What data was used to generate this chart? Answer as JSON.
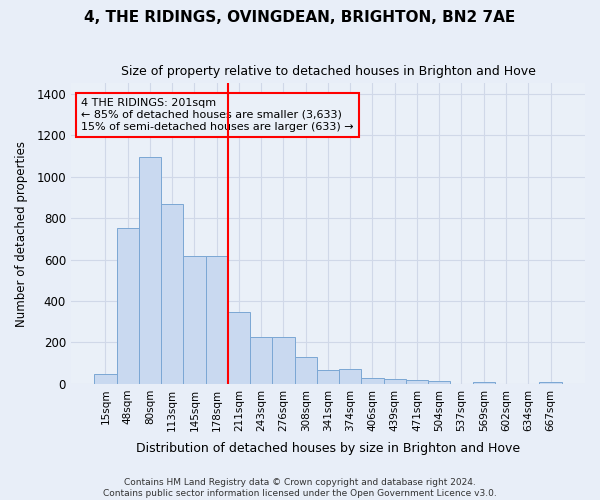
{
  "title": "4, THE RIDINGS, OVINGDEAN, BRIGHTON, BN2 7AE",
  "subtitle": "Size of property relative to detached houses in Brighton and Hove",
  "xlabel": "Distribution of detached houses by size in Brighton and Hove",
  "ylabel": "Number of detached properties",
  "footer": "Contains HM Land Registry data © Crown copyright and database right 2024.\nContains public sector information licensed under the Open Government Licence v3.0.",
  "categories": [
    "15sqm",
    "48sqm",
    "80sqm",
    "113sqm",
    "145sqm",
    "178sqm",
    "211sqm",
    "243sqm",
    "276sqm",
    "308sqm",
    "341sqm",
    "374sqm",
    "406sqm",
    "439sqm",
    "471sqm",
    "504sqm",
    "537sqm",
    "569sqm",
    "602sqm",
    "634sqm",
    "667sqm"
  ],
  "values": [
    50,
    750,
    1095,
    870,
    615,
    615,
    345,
    225,
    225,
    130,
    65,
    70,
    28,
    22,
    20,
    12,
    0,
    10,
    0,
    0,
    10
  ],
  "bar_color": "#c9d9f0",
  "bar_edge_color": "#7ba7d4",
  "vline_color": "red",
  "vline_x_index": 6,
  "ylim": [
    0,
    1450
  ],
  "yticks": [
    0,
    200,
    400,
    600,
    800,
    1000,
    1200,
    1400
  ],
  "annotation_title": "4 THE RIDINGS: 201sqm",
  "annotation_line1": "← 85% of detached houses are smaller (3,633)",
  "annotation_line2": "15% of semi-detached houses are larger (633) →",
  "annotation_box_color": "red",
  "grid_color": "#d0d8e8",
  "background_color": "#e8eef8",
  "plot_bg_color": "#eaf0f8",
  "title_fontsize": 11,
  "subtitle_fontsize": 9
}
